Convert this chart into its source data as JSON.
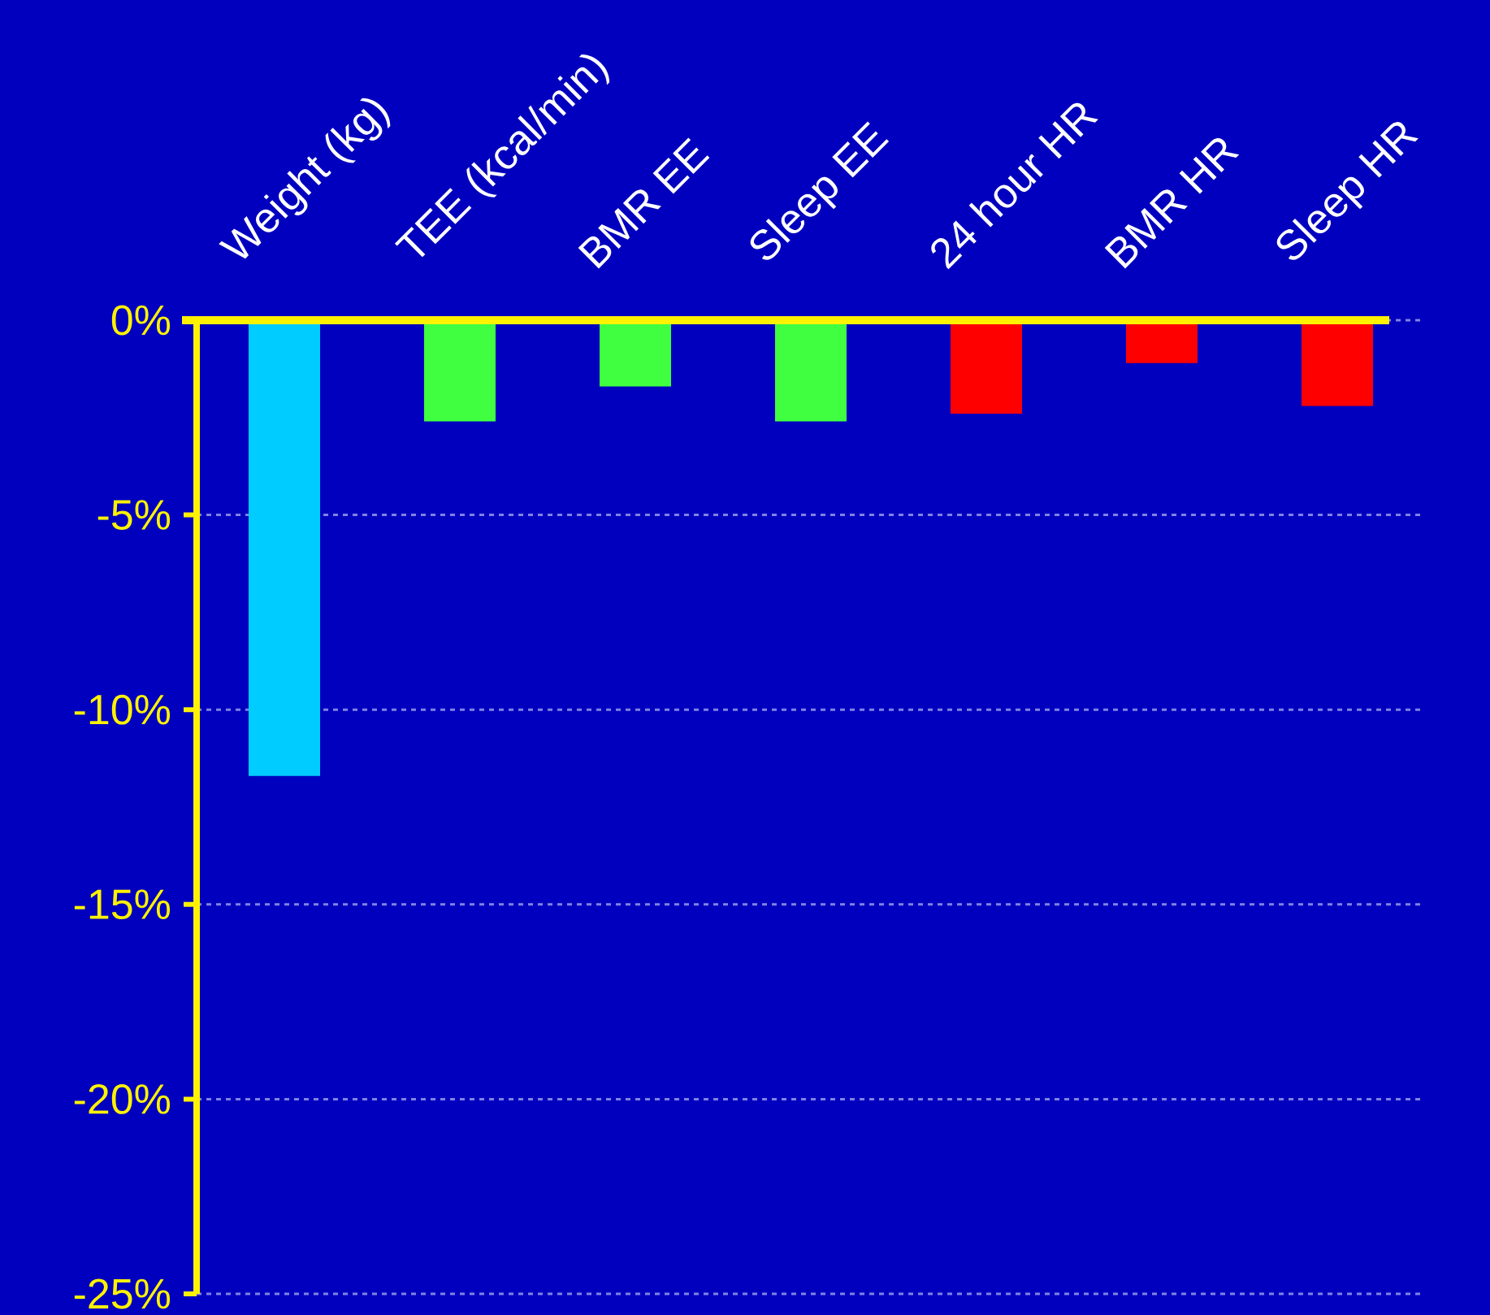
{
  "chart_data": {
    "type": "bar",
    "categories": [
      "Weight (kg)",
      "TEE (kcal/min)",
      "BMR EE",
      "Sleep EE",
      "24 hour HR",
      "BMR HR",
      "Sleep HR"
    ],
    "values": [
      -11.7,
      -2.6,
      -1.7,
      -2.6,
      -2.4,
      -1.1,
      -2.2
    ],
    "colors": [
      "#00ccff",
      "#40ff40",
      "#40ff40",
      "#40ff40",
      "#ff0000",
      "#ff0000",
      "#ff0000"
    ],
    "ylim": [
      -25,
      0
    ],
    "yticks": [
      {
        "value": -25,
        "label": "-25%"
      },
      {
        "value": -20,
        "label": "-20%"
      },
      {
        "value": -15,
        "label": "-15%"
      },
      {
        "value": -10,
        "label": "-10%"
      },
      {
        "value": -5,
        "label": "-5%"
      },
      {
        "value": 0,
        "label": "0%"
      }
    ],
    "grid": "y"
  }
}
